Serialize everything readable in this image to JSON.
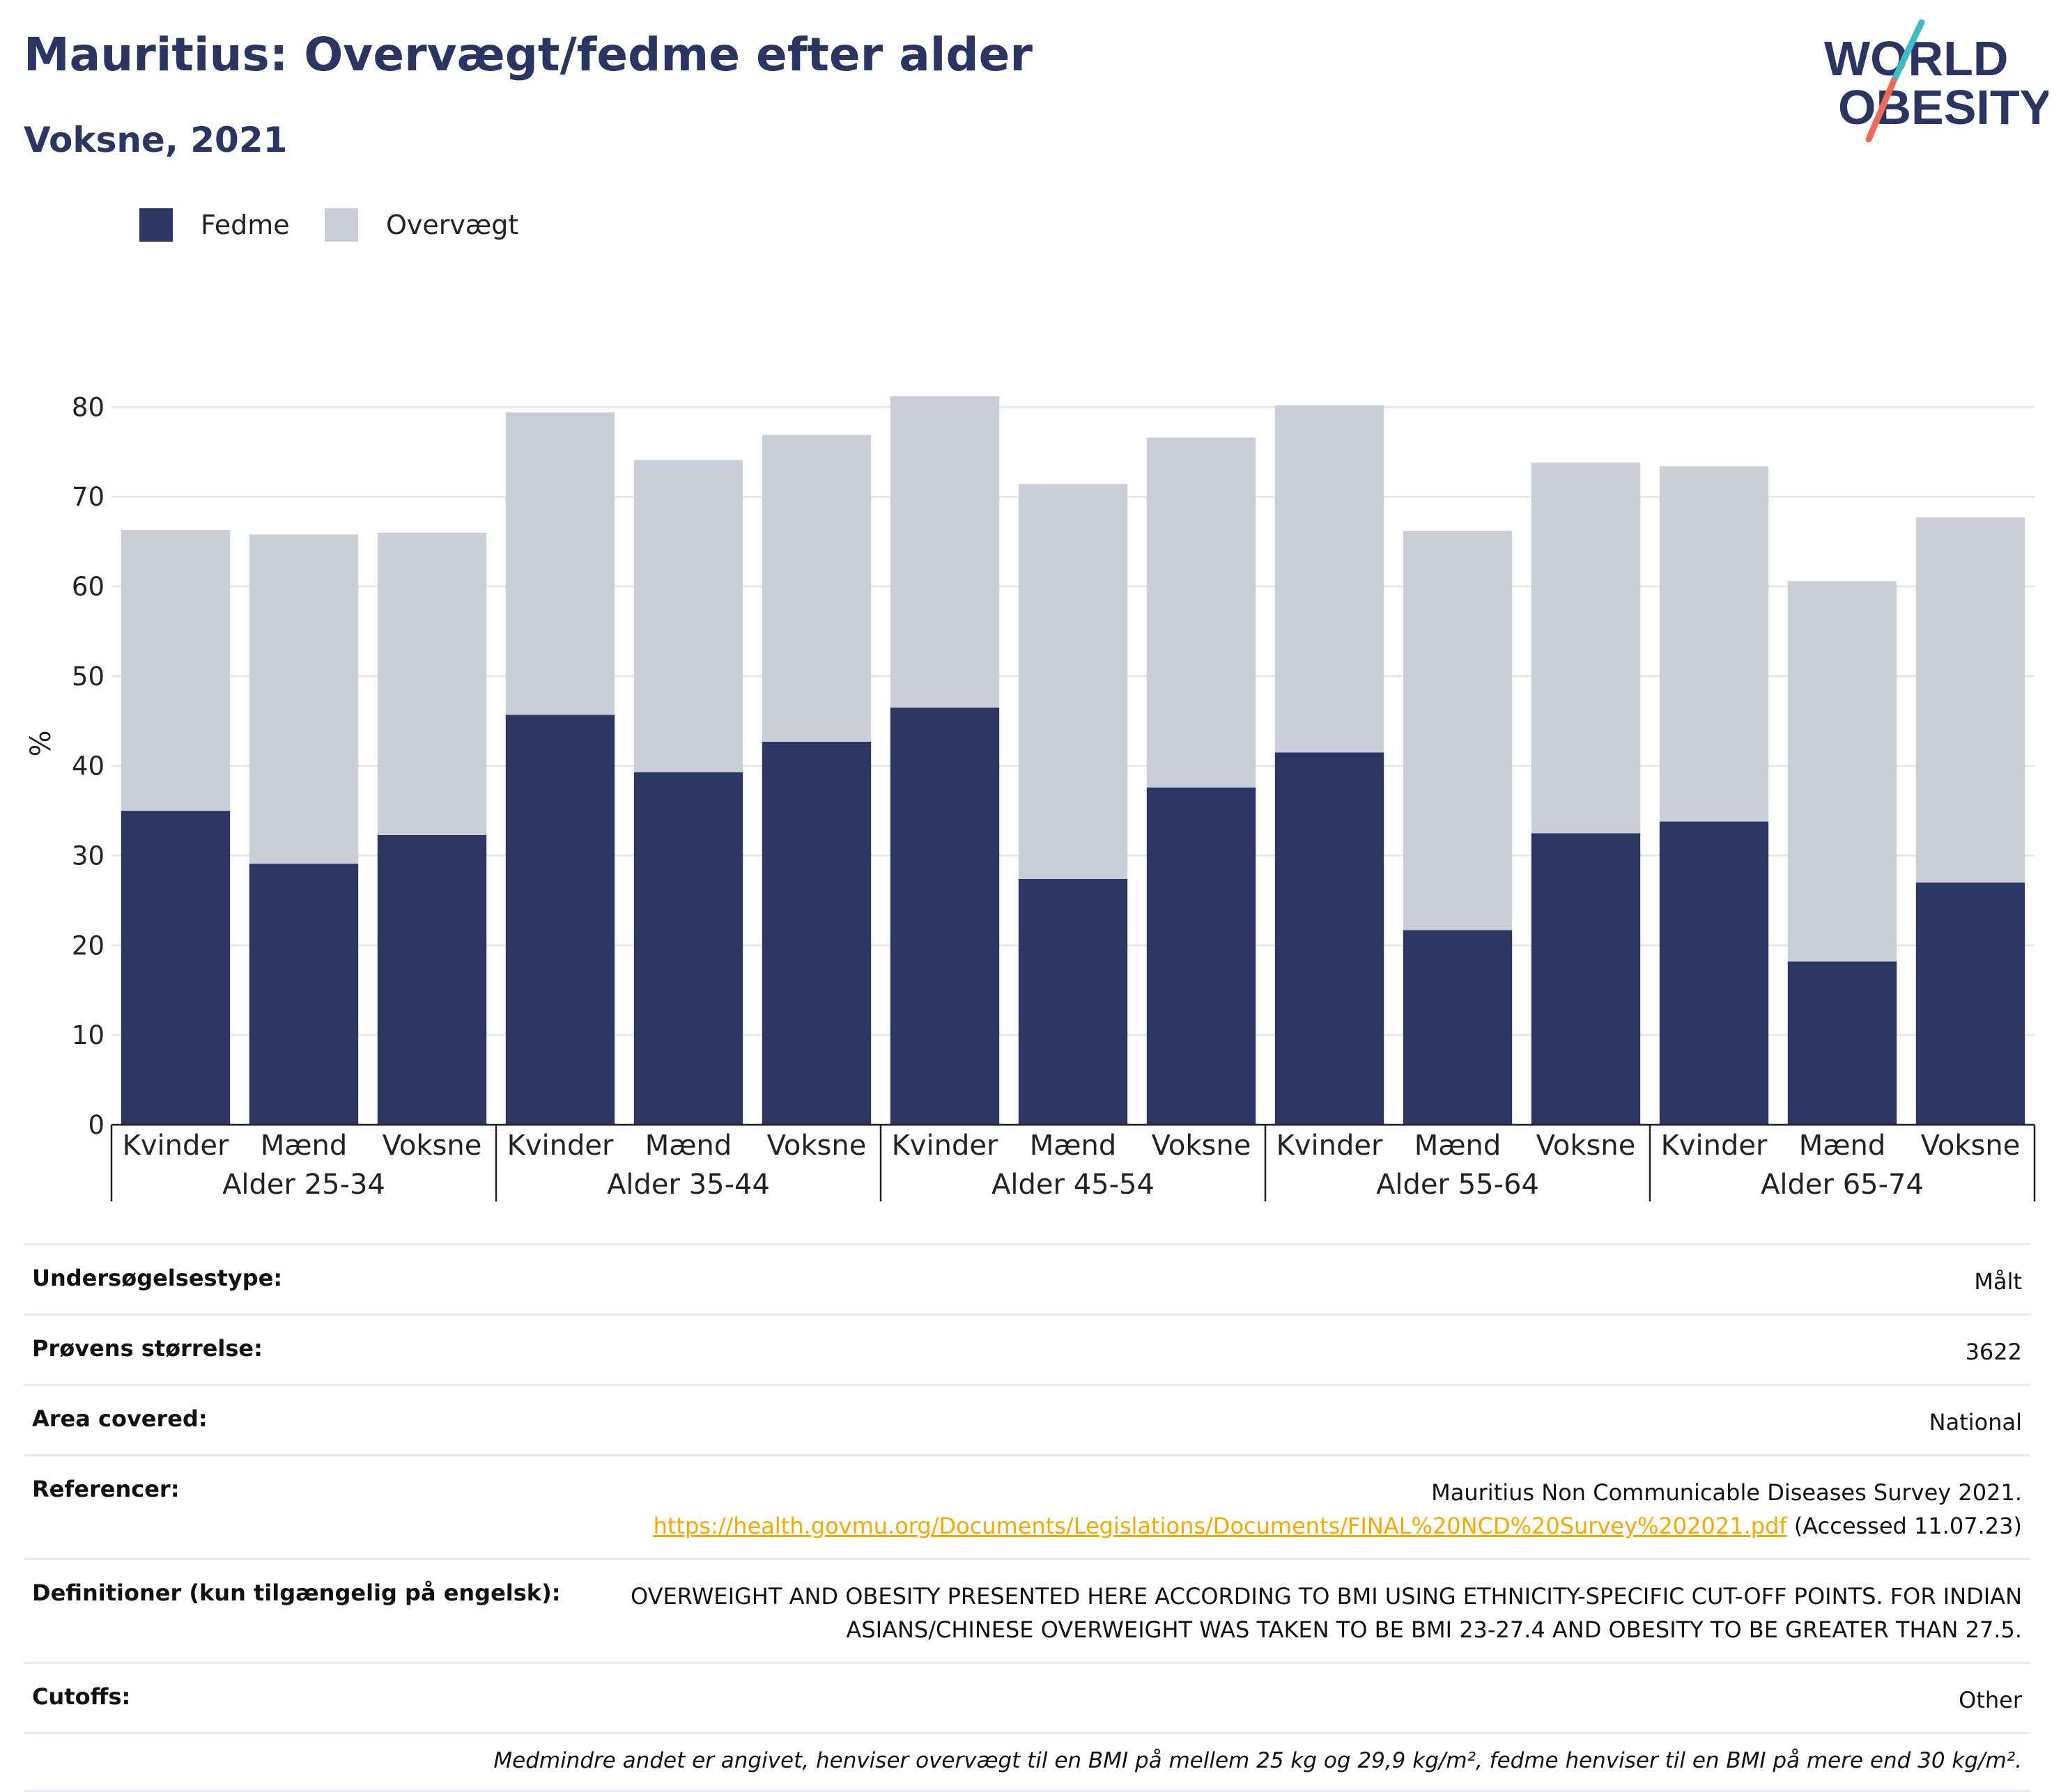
{
  "header": {
    "title": "Mauritius: Overvægt/fedme efter alder",
    "subtitle": "Voksne, 2021",
    "logo_line1": "WORLD",
    "logo_line2": "OBESITY"
  },
  "colors": {
    "title": "#2a3562",
    "fedme": "#2b3663",
    "overvaegt": "#cbcdd8",
    "grid": "#e6e8ee",
    "link": "#f5a800",
    "logo_slash_teal": "#3dbdc3",
    "logo_slash_coral": "#ee6b5a"
  },
  "legend": [
    {
      "label": "Fedme",
      "color": "#2b3663"
    },
    {
      "label": "Overvægt",
      "color": "#cbcdd8"
    }
  ],
  "chart_data": {
    "type": "bar",
    "stacked": true,
    "ylabel": "%",
    "ylim": [
      0,
      85
    ],
    "yticks": [
      0,
      10,
      20,
      30,
      40,
      50,
      60,
      70,
      80
    ],
    "grid": true,
    "legend_position": "top-left",
    "groups": [
      "Alder 25-34",
      "Alder 35-44",
      "Alder 45-54",
      "Alder 55-64",
      "Alder 65-74"
    ],
    "categories": [
      "Kvinder",
      "Mænd",
      "Voksne",
      "Kvinder",
      "Mænd",
      "Voksne",
      "Kvinder",
      "Mænd",
      "Voksne",
      "Kvinder",
      "Mænd",
      "Voksne",
      "Kvinder",
      "Mænd",
      "Voksne"
    ],
    "series": [
      {
        "name": "Fedme",
        "values": [
          35.0,
          29.1,
          32.3,
          45.7,
          39.3,
          42.7,
          46.5,
          27.4,
          37.6,
          41.5,
          21.7,
          32.5,
          33.8,
          18.2,
          27.0
        ]
      },
      {
        "name": "Overvægt",
        "values": [
          31.3,
          36.7,
          33.7,
          33.7,
          34.8,
          34.2,
          34.7,
          44.0,
          39.0,
          38.7,
          44.5,
          41.3,
          39.6,
          42.4,
          40.7
        ]
      }
    ]
  },
  "info": {
    "rows": [
      {
        "label": "Undersøgelsestype:",
        "value": "Målt"
      },
      {
        "label": "Prøvens størrelse:",
        "value": "3622"
      },
      {
        "label": "Area covered:",
        "value": "National"
      }
    ],
    "referencer": {
      "label": "Referencer:",
      "line1": "Mauritius Non Communicable Diseases Survey 2021.",
      "link": "https://health.govmu.org/Documents/Legislations/Documents/FINAL%20NCD%20Survey%202021.pdf",
      "accessed": " (Accessed 11.07.23)"
    },
    "definitioner": {
      "label": "Definitioner (kun tilgængelig på engelsk):",
      "line1": "OVERWEIGHT AND OBESITY PRESENTED HERE ACCORDING TO BMI USING ETHNICITY-SPECIFIC CUT-OFF POINTS. FOR INDIAN",
      "line2": "ASIANS/CHINESE OVERWEIGHT WAS TAKEN TO BE BMI 23-27.4 AND OBESITY TO BE GREATER THAN 27.5."
    },
    "cutoffs": {
      "label": "Cutoffs:",
      "value": "Other"
    },
    "footnote": "Medmindre andet er angivet, henviser overvægt til en BMI på mellem 25 kg og 29,9 kg/m², fedme henviser til en BMI på mere end 30 kg/m²."
  }
}
